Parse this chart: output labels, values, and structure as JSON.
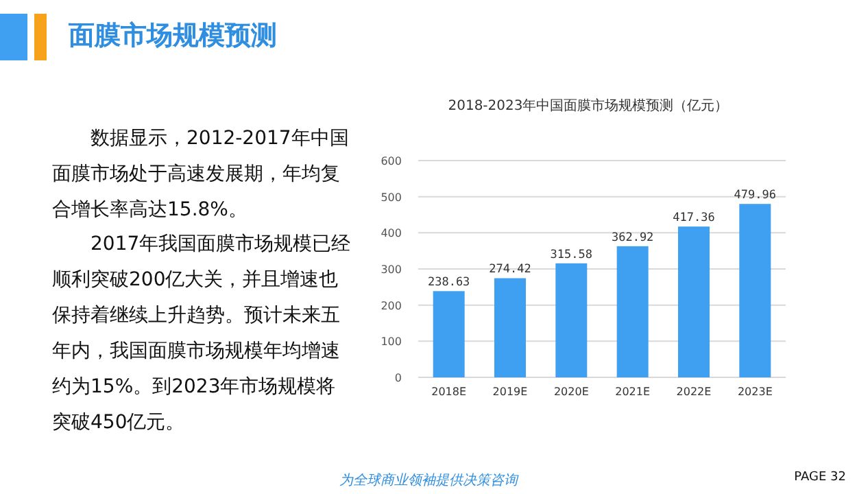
{
  "chart_data": {
    "type": "bar",
    "title": "2018-2023年中国面膜市场规模预测（亿元）",
    "categories": [
      "2018E",
      "2019E",
      "2020E",
      "2021E",
      "2022E",
      "2023E"
    ],
    "series": [
      {
        "color": "#3f9ff0",
        "values": [
          238.63,
          274.42,
          315.58,
          362.92,
          417.36,
          479.96
        ]
      }
    ],
    "ylim": [
      0,
      600
    ],
    "yticks": [
      0,
      100,
      200,
      300,
      400,
      500,
      600
    ],
    "grid": "y",
    "data_labels": true,
    "annotations": [
      "面膜市场规模预测",
      "数据显示，2012-2017年中国面膜市场处于高速发展期，年均复合增长率高达15.8%。",
      "2017年我国面膜市场规模已经顺利突破200亿大关，并且增速也保持着继续上升趋势。预计未来五年内，我国面膜市场规模年均增速约为15%。到2023年市场规模将突破450亿元。",
      "为全球商业领袖提供决策咨询",
      "PAGE 32"
    ]
  }
}
